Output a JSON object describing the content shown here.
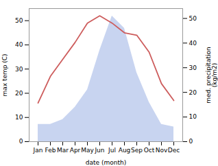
{
  "chart_data": {
    "type": "line",
    "categories": [
      "Jan",
      "Feb",
      "Mar",
      "Apr",
      "May",
      "Jun",
      "Jul",
      "Aug",
      "Sep",
      "Oct",
      "Nov",
      "Dec"
    ],
    "series": [
      {
        "type": "area",
        "color": "#c8d4f0",
        "axis": "y2",
        "values": [
          7,
          7,
          9,
          14,
          21,
          37,
          51,
          46,
          28,
          16,
          7,
          6
        ]
      },
      {
        "type": "line",
        "color": "#cd5c5c",
        "values": [
          16,
          27,
          34,
          41,
          49,
          52,
          49,
          45,
          44,
          37,
          24,
          17
        ]
      }
    ],
    "xlabel": "date (month)",
    "ylabel": "max temp (C)",
    "y2label": "med. precipitation\n(kg/m2)",
    "ylim": [
      0,
      55
    ],
    "yticks": [
      0,
      10,
      20,
      30,
      40,
      50
    ],
    "y2lim": [
      0,
      54
    ],
    "y2ticks": [
      0,
      10,
      20,
      30,
      40,
      50
    ]
  }
}
